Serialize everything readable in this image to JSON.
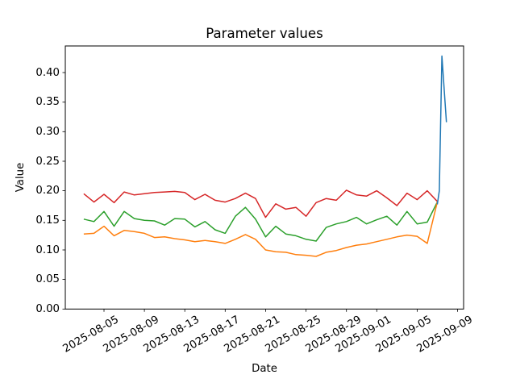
{
  "chart_data": {
    "type": "line",
    "title": "Parameter values",
    "xlabel": "Date",
    "ylabel": "Value",
    "grid": false,
    "legend": "none",
    "background": "#ffffff",
    "ylim": [
      0,
      0.445
    ],
    "xlim_days": [
      -1.83,
      37.6
    ],
    "y_ticks": {
      "values": [
        0.0,
        0.05,
        0.1,
        0.15,
        0.2,
        0.25,
        0.3,
        0.35,
        0.4
      ],
      "labels": [
        "0.00",
        "0.05",
        "0.10",
        "0.15",
        "0.20",
        "0.25",
        "0.30",
        "0.35",
        "0.40"
      ]
    },
    "x_ticks": {
      "days": [
        2,
        6,
        10,
        14,
        18,
        22,
        26,
        29,
        33,
        37
      ],
      "labels": [
        "2025-08-05",
        "2025-08-09",
        "2025-08-13",
        "2025-08-17",
        "2025-08-21",
        "2025-08-25",
        "2025-08-29",
        "2025-09-01",
        "2025-09-05",
        "2025-09-09"
      ]
    },
    "dates": [
      "2025-08-03",
      "2025-08-04",
      "2025-08-05",
      "2025-08-06",
      "2025-08-07",
      "2025-08-08",
      "2025-08-09",
      "2025-08-10",
      "2025-08-11",
      "2025-08-12",
      "2025-08-13",
      "2025-08-14",
      "2025-08-15",
      "2025-08-16",
      "2025-08-17",
      "2025-08-18",
      "2025-08-19",
      "2025-08-20",
      "2025-08-21",
      "2025-08-22",
      "2025-08-23",
      "2025-08-24",
      "2025-08-25",
      "2025-08-26",
      "2025-08-27",
      "2025-08-28",
      "2025-08-29",
      "2025-08-30",
      "2025-08-31",
      "2025-09-01",
      "2025-09-02",
      "2025-09-03",
      "2025-09-04",
      "2025-09-05",
      "2025-09-06",
      "2025-09-07"
    ],
    "series": [
      {
        "name": "red",
        "color": "#d62728",
        "values": [
          0.195,
          0.181,
          0.194,
          0.18,
          0.198,
          0.193,
          0.195,
          0.197,
          0.198,
          0.199,
          0.197,
          0.185,
          0.194,
          0.184,
          0.181,
          0.187,
          0.196,
          0.187,
          0.155,
          0.178,
          0.169,
          0.172,
          0.157,
          0.18,
          0.187,
          0.184,
          0.201,
          0.193,
          0.191,
          0.2,
          0.188,
          0.175,
          0.196,
          0.185,
          0.2,
          0.182
        ]
      },
      {
        "name": "green",
        "color": "#2ca02c",
        "values": [
          0.152,
          0.148,
          0.165,
          0.14,
          0.165,
          0.153,
          0.15,
          0.149,
          0.142,
          0.153,
          0.152,
          0.139,
          0.148,
          0.134,
          0.128,
          0.157,
          0.172,
          0.152,
          0.122,
          0.14,
          0.127,
          0.124,
          0.118,
          0.115,
          0.138,
          0.144,
          0.148,
          0.155,
          0.144,
          0.151,
          0.157,
          0.142,
          0.165,
          0.144,
          0.147,
          0.181
        ]
      },
      {
        "name": "orange",
        "color": "#ff7f0e",
        "values": [
          0.127,
          0.128,
          0.14,
          0.124,
          0.133,
          0.131,
          0.128,
          0.121,
          0.122,
          0.119,
          0.117,
          0.114,
          0.116,
          0.114,
          0.111,
          0.118,
          0.126,
          0.118,
          0.1,
          0.097,
          0.096,
          0.092,
          0.091,
          0.089,
          0.096,
          0.099,
          0.104,
          0.108,
          0.11,
          0.114,
          0.118,
          0.122,
          0.125,
          0.123,
          0.111,
          0.181
        ]
      },
      {
        "name": "blue",
        "color": "#1f77b4",
        "x_days": [
          35.0,
          35.2,
          35.45,
          35.9
        ],
        "values": [
          0.177,
          0.2,
          0.428,
          0.316
        ]
      }
    ]
  }
}
